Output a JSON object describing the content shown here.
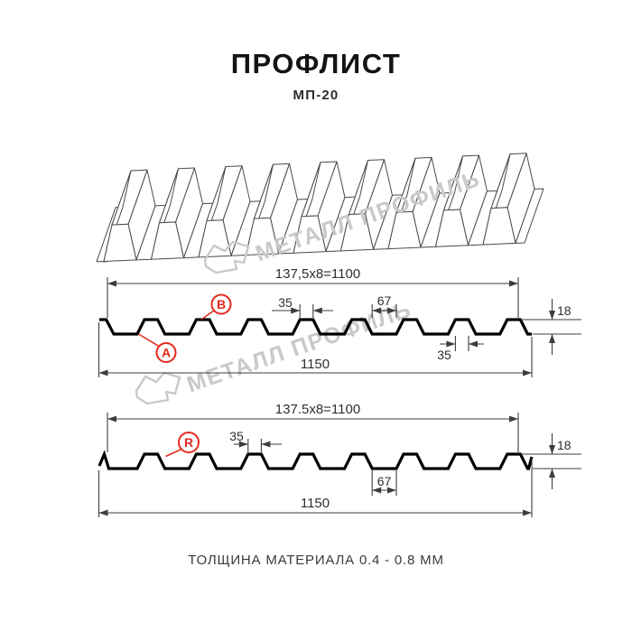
{
  "header": {
    "title": "ПРОФЛИСТ",
    "subtitle": "МП-20"
  },
  "watermark": {
    "brand": "МЕТАЛЛ ПРОФИЛЬ"
  },
  "footer": {
    "note": "ТОЛЩИНА МАТЕРИАЛА 0.4 - 0.8 ММ"
  },
  "colors": {
    "red_accent": "#e42b1e",
    "drawing_line": "#000000",
    "dimension_line": "#3d3d3d",
    "watermark_gray": "#c9c9c9"
  },
  "profiles": {
    "top": {
      "module_dim": "137,5x8=1100",
      "rib_top_width": "35",
      "valley_width": "67",
      "height": "18",
      "rib_bottom_width": "35",
      "total_width": "1150",
      "point_a": "A",
      "point_b": "B"
    },
    "bottom": {
      "module_dim": "137.5x8=1100",
      "rib_top_width": "35",
      "valley_width": "67",
      "height": "18",
      "total_width": "1150",
      "point_r": "R"
    }
  }
}
